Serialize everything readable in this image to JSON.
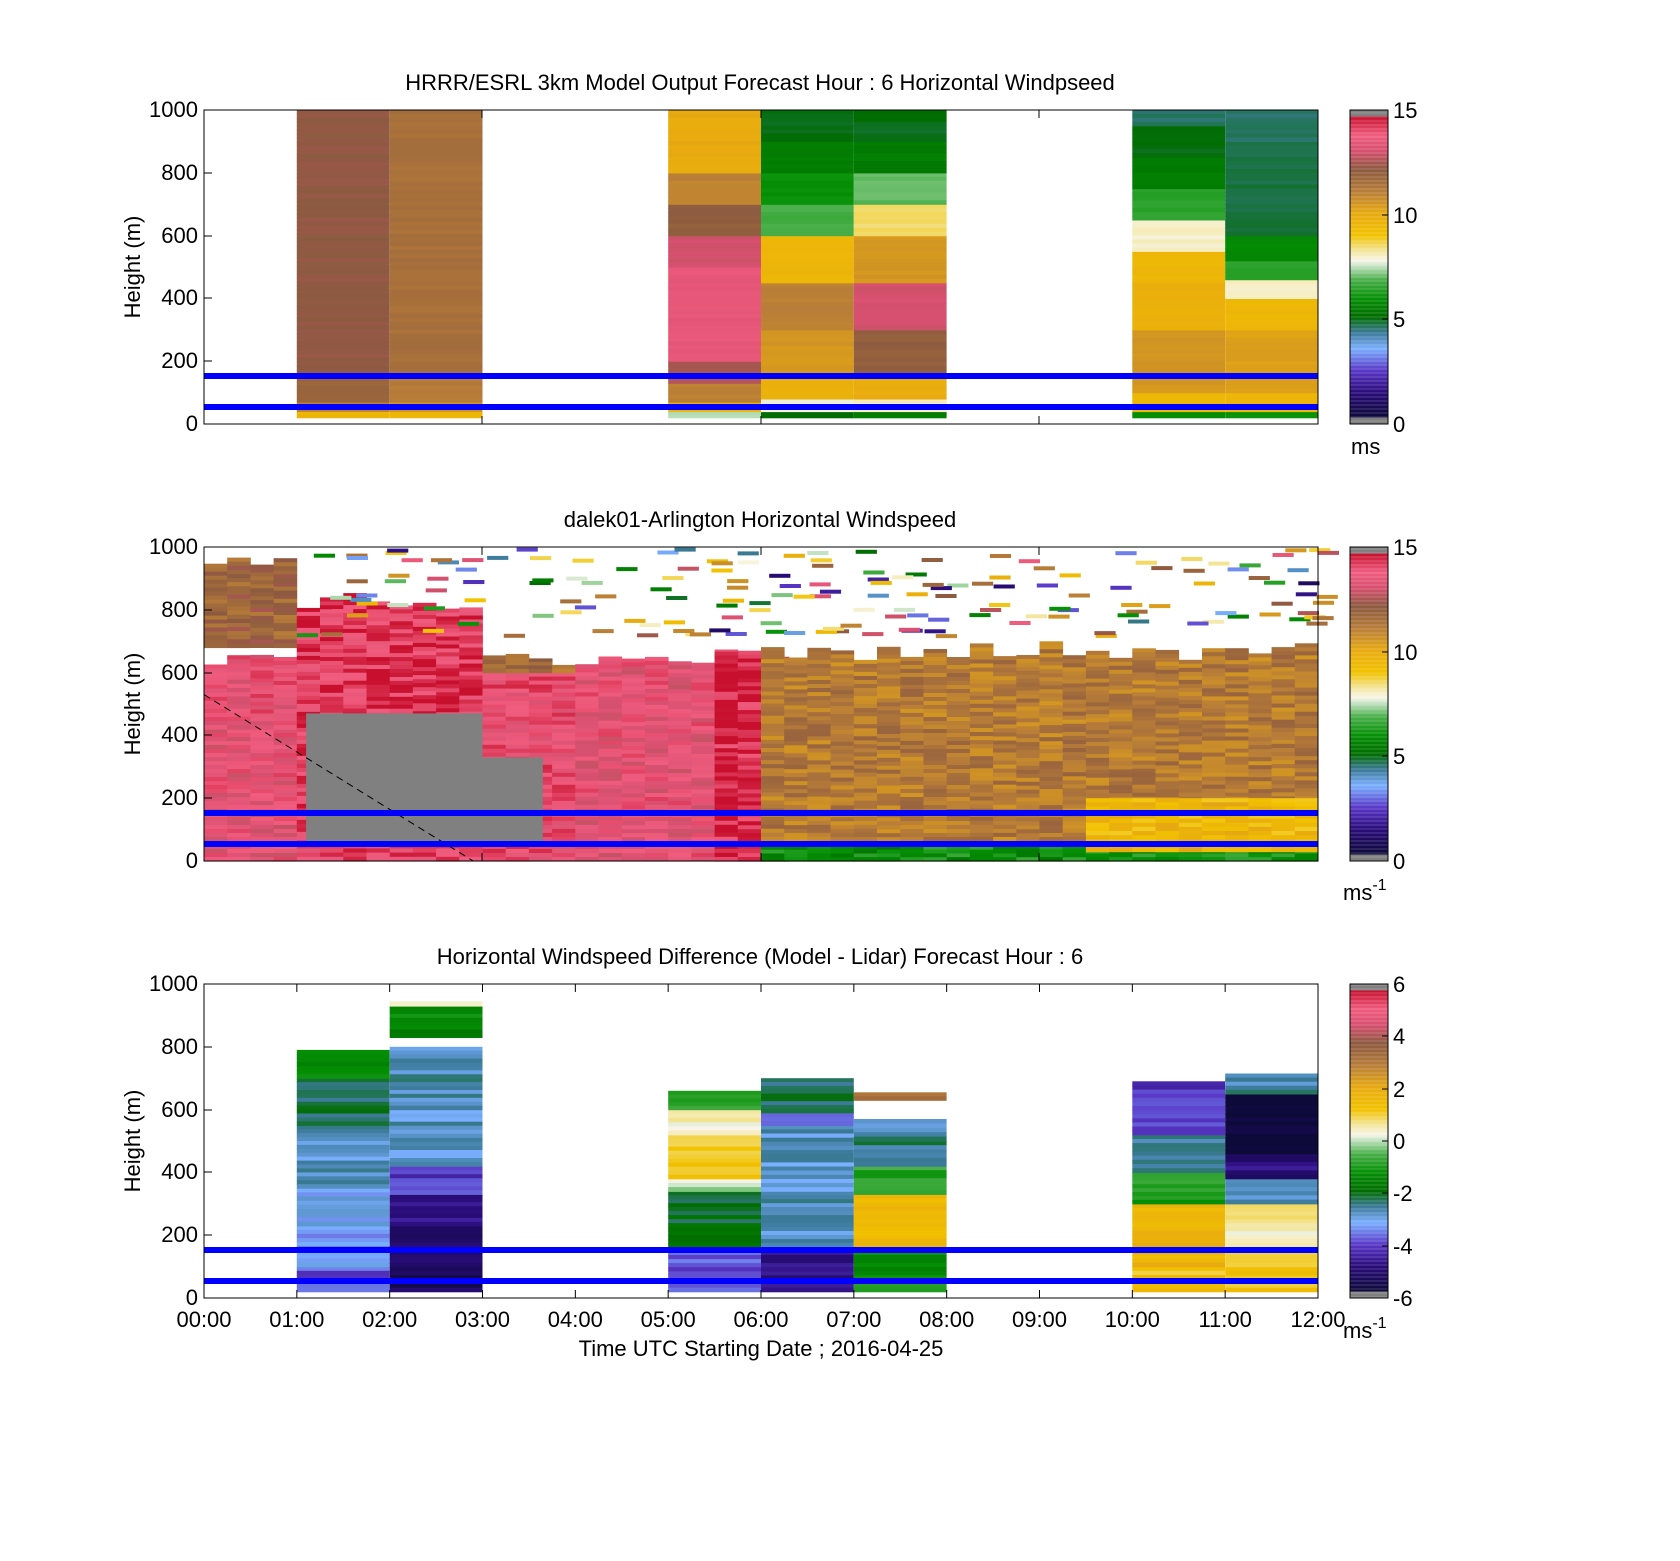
{
  "figure": {
    "xlabel": "Time UTC  Starting Date ; 2016-04-25",
    "x_ticks": [
      "00:00",
      "01:00",
      "02:00",
      "03:00",
      "04:00",
      "05:00",
      "06:00",
      "07:00",
      "08:00",
      "09:00",
      "10:00",
      "11:00",
      "12:00"
    ],
    "line_color": "#0000ff",
    "missing_color": "#808080"
  },
  "chart_data": [
    {
      "type": "heatmap",
      "title": "HRRR/ESRL 3km Model Output   Forecast Hour : 6 Horizontal Windpseed",
      "ylabel": "Height (m)",
      "xlim": [
        0,
        12
      ],
      "ylim": [
        0,
        1000
      ],
      "y_ticks": [
        "0",
        "200",
        "400",
        "600",
        "800",
        "1000"
      ],
      "colorbar": {
        "min": 0,
        "max": 15,
        "ticks": [
          "0",
          "5",
          "10",
          "15"
        ],
        "unit": "ms",
        "unit_sup": ""
      },
      "reference_lines_m": [
        50,
        150
      ],
      "columns": [
        {
          "x0": 1,
          "x1": 2,
          "bins": [
            [
              20,
              40,
              9.5
            ],
            [
              40,
              70,
              11
            ],
            [
              70,
              160,
              11.8
            ],
            [
              160,
              1000,
              12.2
            ]
          ]
        },
        {
          "x0": 2,
          "x1": 3,
          "bins": [
            [
              20,
              40,
              9.5
            ],
            [
              40,
              70,
              10.5
            ],
            [
              70,
              160,
              11.2
            ],
            [
              160,
              1000,
              11.5
            ]
          ]
        },
        {
          "x0": 5,
          "x1": 6,
          "bins": [
            [
              20,
              40,
              7.5
            ],
            [
              40,
              70,
              9.5
            ],
            [
              70,
              130,
              11
            ],
            [
              130,
              200,
              12.5
            ],
            [
              200,
              300,
              13.5
            ],
            [
              300,
              500,
              13.5
            ],
            [
              500,
              600,
              13
            ],
            [
              600,
              700,
              12
            ],
            [
              700,
              800,
              11
            ],
            [
              800,
              1000,
              10
            ]
          ]
        },
        {
          "x0": 6,
          "x1": 7,
          "bins": [
            [
              20,
              40,
              5
            ],
            [
              40,
              80,
              7.8
            ],
            [
              80,
              160,
              9.8
            ],
            [
              160,
              300,
              10.5
            ],
            [
              300,
              450,
              11
            ],
            [
              450,
              600,
              9.5
            ],
            [
              600,
              700,
              6.8
            ],
            [
              700,
              800,
              6
            ],
            [
              800,
              900,
              5.5
            ],
            [
              900,
              1000,
              5
            ]
          ]
        },
        {
          "x0": 7,
          "x1": 8,
          "bins": [
            [
              20,
              40,
              5.5
            ],
            [
              40,
              80,
              8
            ],
            [
              80,
              160,
              10
            ],
            [
              160,
              300,
              12
            ],
            [
              300,
              450,
              13
            ],
            [
              450,
              600,
              10.5
            ],
            [
              600,
              700,
              8.5
            ],
            [
              700,
              800,
              7
            ],
            [
              800,
              900,
              5.5
            ],
            [
              900,
              1000,
              5
            ]
          ]
        },
        {
          "x0": 10,
          "x1": 11,
          "bins": [
            [
              20,
              40,
              6
            ],
            [
              40,
              100,
              9.5
            ],
            [
              100,
              300,
              10.5
            ],
            [
              300,
              450,
              9.8
            ],
            [
              450,
              550,
              9.5
            ],
            [
              550,
              650,
              8
            ],
            [
              650,
              750,
              6.5
            ],
            [
              750,
              850,
              5.5
            ],
            [
              850,
              950,
              5
            ],
            [
              950,
              1000,
              4.6
            ]
          ]
        },
        {
          "x0": 11,
          "x1": 12,
          "bins": [
            [
              20,
              40,
              6
            ],
            [
              40,
              100,
              9.5
            ],
            [
              100,
              300,
              10.3
            ],
            [
              300,
              400,
              9.5
            ],
            [
              400,
              460,
              8
            ],
            [
              460,
              520,
              6.5
            ],
            [
              520,
              600,
              5.8
            ],
            [
              600,
              900,
              4.8
            ],
            [
              900,
              1000,
              4.6
            ]
          ]
        }
      ]
    },
    {
      "type": "heatmap",
      "title": "dalek01-Arlington  Horizontal Windspeed",
      "ylabel": "Height (m)",
      "xlim": [
        0,
        12
      ],
      "ylim": [
        0,
        1000
      ],
      "y_ticks": [
        "0",
        "200",
        "400",
        "600",
        "800",
        "1000"
      ],
      "colorbar": {
        "min": 0,
        "max": 15,
        "ticks": [
          "0",
          "5",
          "10",
          "15"
        ],
        "unit": "ms",
        "unit_sup": "-1"
      },
      "reference_lines_m": [
        50,
        150
      ],
      "dashed_line": [
        [
          0,
          530
        ],
        [
          2.9,
          0
        ]
      ],
      "segments": [
        {
          "x0": 0,
          "x1": 1,
          "y0": 0,
          "y1": 420,
          "value": 13.5
        },
        {
          "x0": 0,
          "x1": 1,
          "y0": 420,
          "y1": 680,
          "value": 13.6
        },
        {
          "x0": 0,
          "x1": 1,
          "y0": 680,
          "y1": 1000,
          "value": 11.8
        },
        {
          "x0": 1,
          "x1": 3,
          "y0": 0,
          "y1": 80,
          "value": 14
        },
        {
          "x0": 1,
          "x1": 3,
          "y0": 80,
          "y1": 860,
          "value": 14.2
        },
        {
          "x0": 3,
          "x1": 4,
          "y0": 0,
          "y1": 600,
          "value": 13.8
        },
        {
          "x0": 3,
          "x1": 4,
          "y0": 600,
          "y1": 680,
          "value": 11.5
        },
        {
          "x0": 4,
          "x1": 6,
          "y0": 0,
          "y1": 680,
          "value": 13.5
        },
        {
          "x0": 5.5,
          "x1": 6.3,
          "y0": 0,
          "y1": 680,
          "value": 14.5
        },
        {
          "x0": 6,
          "x1": 12,
          "y0": 0,
          "y1": 700,
          "value": 11.2
        },
        {
          "x0": 6,
          "x1": 12,
          "y0": 0,
          "y1": 60,
          "value": 6
        },
        {
          "x0": 9.5,
          "x1": 12,
          "y0": 30,
          "y1": 200,
          "value": 9.5
        }
      ],
      "missing": [
        {
          "x0": 1.1,
          "x1": 3,
          "y0": 60,
          "y1": 470
        },
        {
          "x0": 3,
          "x1": 3.65,
          "y0": 60,
          "y1": 330
        }
      ]
    },
    {
      "type": "heatmap",
      "title": "Horizontal Windspeed Difference (Model - Lidar) Forecast Hour : 6",
      "ylabel": "Height (m)",
      "xlim": [
        0,
        12
      ],
      "ylim": [
        0,
        1000
      ],
      "y_ticks": [
        "0",
        "200",
        "400",
        "600",
        "800",
        "1000"
      ],
      "colorbar": {
        "min": -6,
        "max": 6,
        "ticks": [
          "-6",
          "-4",
          "-2",
          "0",
          "2",
          "4",
          "6"
        ],
        "unit": "ms",
        "unit_sup": "-1"
      },
      "reference_lines_m": [
        50,
        150
      ],
      "columns": [
        {
          "x0": 1,
          "x1": 2,
          "bins": [
            [
              20,
              100,
              -3.8
            ],
            [
              100,
              230,
              -3.3
            ],
            [
              230,
              350,
              -3
            ],
            [
              350,
              550,
              -2.8
            ],
            [
              550,
              700,
              -2.2
            ],
            [
              700,
              790,
              -1.2
            ]
          ]
        },
        {
          "x0": 2,
          "x1": 3,
          "bins": [
            [
              20,
              230,
              -5.2
            ],
            [
              230,
              330,
              -4.6
            ],
            [
              330,
              420,
              -4
            ],
            [
              420,
              600,
              -2.8
            ],
            [
              600,
              800,
              -2.7
            ],
            [
              830,
              930,
              -1.4
            ],
            [
              930,
              945,
              0.6
            ]
          ]
        },
        {
          "x0": 5,
          "x1": 6,
          "bins": [
            [
              20,
              150,
              -3.8
            ],
            [
              150,
              340,
              -2
            ],
            [
              340,
              380,
              0.1
            ],
            [
              380,
              520,
              1.2
            ],
            [
              520,
              600,
              0.4
            ],
            [
              600,
              660,
              -0.9
            ]
          ]
        },
        {
          "x0": 6,
          "x1": 7,
          "bins": [
            [
              20,
              150,
              -4.8
            ],
            [
              150,
              340,
              -2.7
            ],
            [
              340,
              550,
              -2.8
            ],
            [
              550,
              590,
              -3.5
            ],
            [
              590,
              700,
              -2.2
            ]
          ]
        },
        {
          "x0": 7,
          "x1": 8,
          "bins": [
            [
              20,
              150,
              -1.2
            ],
            [
              150,
              330,
              1.6
            ],
            [
              330,
              420,
              -0.8
            ],
            [
              420,
              500,
              -2.4
            ],
            [
              500,
              570,
              -2.6
            ],
            [
              630,
              655,
              3.3
            ]
          ]
        },
        {
          "x0": 10,
          "x1": 11,
          "bins": [
            [
              20,
              100,
              1.2
            ],
            [
              100,
              300,
              1.7
            ],
            [
              300,
              400,
              -0.9
            ],
            [
              400,
              520,
              -2.4
            ],
            [
              520,
              690,
              -4
            ]
          ]
        },
        {
          "x0": 11,
          "x1": 12,
          "bins": [
            [
              20,
              150,
              1.3
            ],
            [
              150,
              300,
              0.5
            ],
            [
              300,
              380,
              -2.8
            ],
            [
              380,
              460,
              -4.8
            ],
            [
              460,
              650,
              -5.8
            ],
            [
              650,
              715,
              -2.6
            ]
          ]
        }
      ]
    }
  ]
}
